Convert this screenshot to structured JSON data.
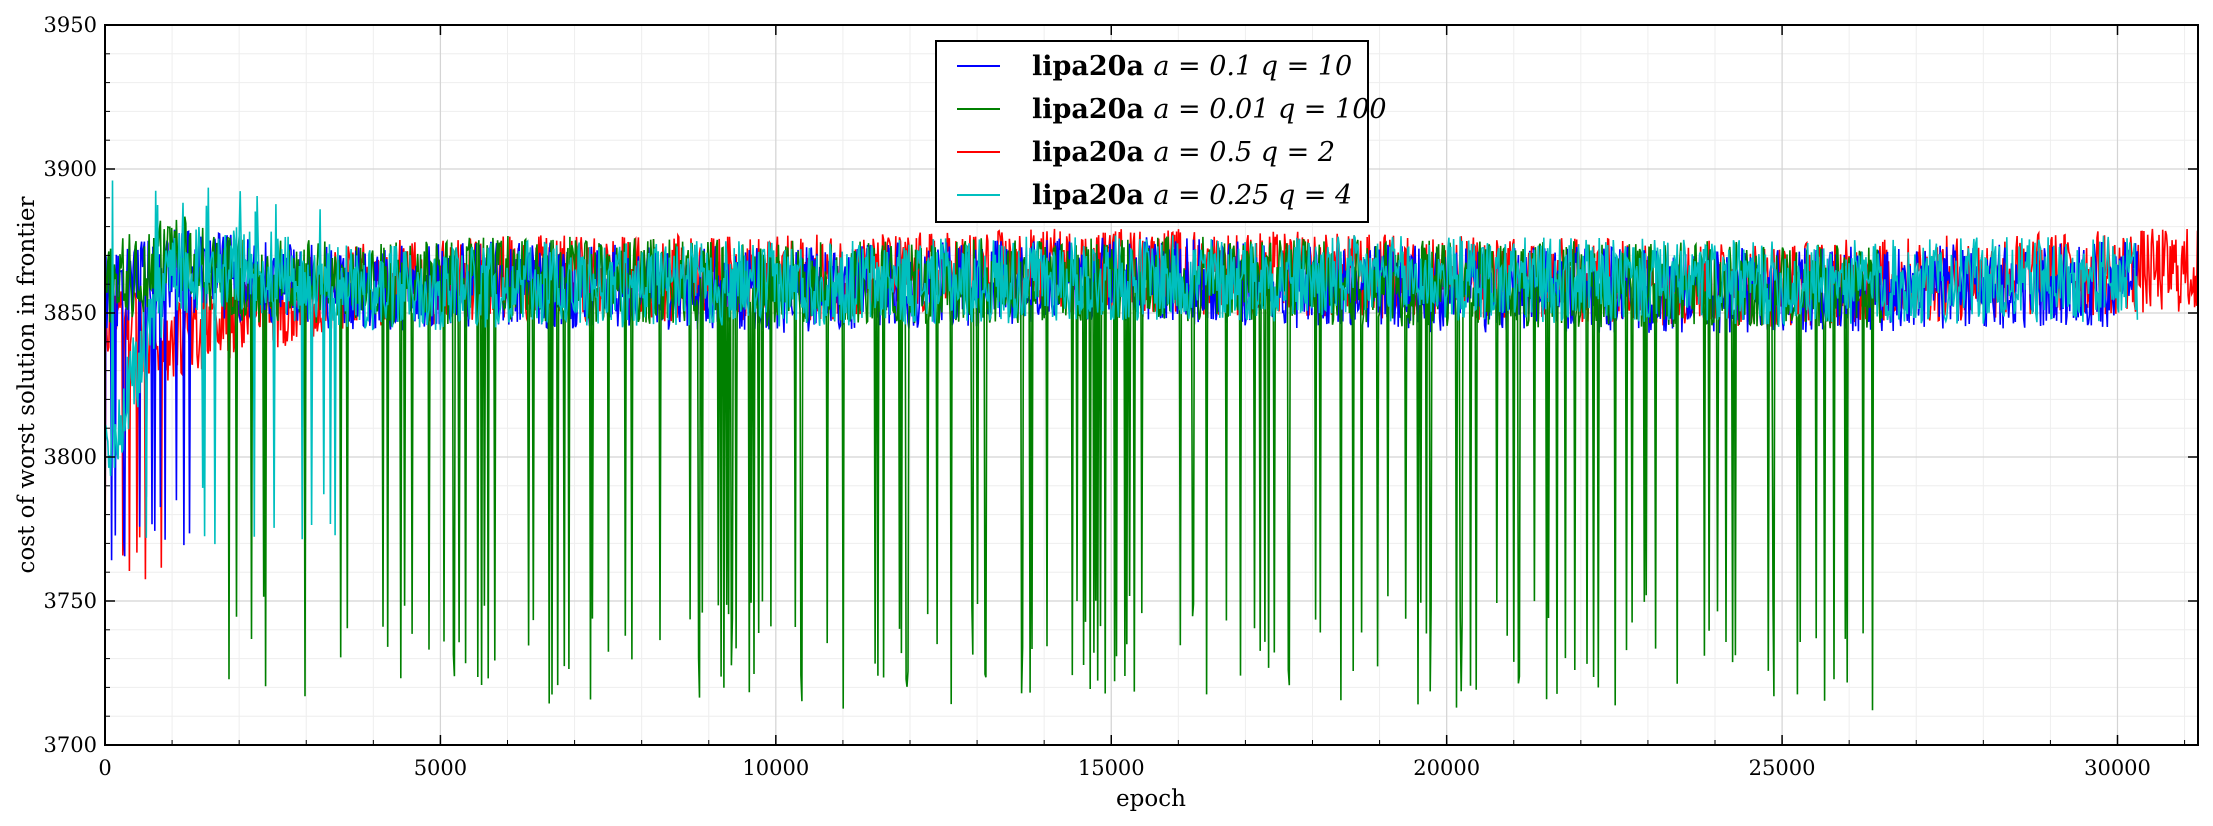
{
  "chart_data": {
    "type": "line",
    "title": "",
    "xlabel": "epoch",
    "ylabel": "cost of worst solution in frontier",
    "xlim": [
      0,
      31200
    ],
    "ylim": [
      3700,
      3950
    ],
    "xticks": [
      0,
      5000,
      10000,
      15000,
      20000,
      25000,
      30000
    ],
    "yticks": [
      3700,
      3750,
      3800,
      3850,
      3900,
      3950
    ],
    "grid": true,
    "legend_position": "top-center",
    "series": [
      {
        "name": "lipa20a a = 0.1 q = 10",
        "legend": {
          "bold": "lipa20a",
          "math": "a = 0.1 q = 10"
        },
        "color": "#0000ff",
        "end_epoch": 30300,
        "x": [
          0,
          1000,
          2000,
          4000,
          6000,
          10000,
          15000,
          20000,
          25000,
          30000
        ],
        "y": [
          3855,
          3865,
          3862,
          3858,
          3860,
          3858,
          3862,
          3858,
          3858,
          3860
        ]
      },
      {
        "name": "lipa20a a = 0.01 q = 100",
        "legend": {
          "bold": "lipa20a",
          "math": "a = 0.01 q = 100"
        },
        "color": "#008000",
        "end_epoch": 26500,
        "x": [
          0,
          1000,
          2000,
          4000,
          6000,
          10000,
          15000,
          20000,
          25000,
          26500
        ],
        "y": [
          3858,
          3870,
          3862,
          3860,
          3862,
          3860,
          3862,
          3860,
          3860,
          3858
        ]
      },
      {
        "name": "lipa20a a = 0.5 q = 2",
        "legend": {
          "bold": "lipa20a",
          "math": "a = 0.5 q = 2"
        },
        "color": "#ff0000",
        "end_epoch": 31200,
        "x": [
          0,
          1000,
          2000,
          4000,
          6000,
          10000,
          15000,
          20000,
          25000,
          31200
        ],
        "y": [
          3850,
          3840,
          3850,
          3860,
          3862,
          3862,
          3865,
          3862,
          3860,
          3865
        ]
      },
      {
        "name": "lipa20a a = 0.25 q = 4",
        "legend": {
          "bold": "lipa20a",
          "math": "a = 0.25 q = 4"
        },
        "color": "#00bfbf",
        "end_epoch": 30300,
        "x": [
          0,
          1000,
          2000,
          4000,
          6000,
          10000,
          15000,
          20000,
          25000,
          30000
        ],
        "y": [
          3800,
          3865,
          3865,
          3858,
          3860,
          3860,
          3862,
          3862,
          3860,
          3862
        ]
      }
    ]
  }
}
